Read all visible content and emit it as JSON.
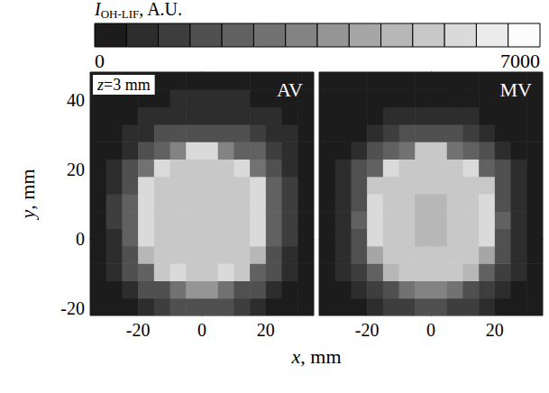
{
  "figure": {
    "xlabel": "x, mm",
    "ylabel": "y, mm",
    "colorbar": {
      "title": [
        "I",
        "OH-LIF",
        ", A.U."
      ],
      "range": [
        0,
        7000
      ],
      "ticks": [
        0,
        7000
      ],
      "levels": [
        0,
        500,
        1000,
        1500,
        2000,
        2500,
        3000,
        3500,
        4000,
        4500,
        5000,
        5500,
        6000,
        6500,
        7000
      ]
    }
  },
  "chart_data": [
    {
      "type": "heatmap",
      "title": "AV",
      "annotation": "z=3 mm",
      "xlim": [
        -35,
        35
      ],
      "ylim": [
        -22,
        48
      ],
      "xticks": [
        -20,
        0,
        20
      ],
      "yticks": [
        -20,
        0,
        20,
        40
      ],
      "tick_labels": true,
      "x_bins": [
        -35,
        -30,
        -25,
        -20,
        -15,
        -10,
        -5,
        0,
        5,
        10,
        15,
        20,
        25,
        30,
        35
      ],
      "y_bins": [
        -22,
        -17,
        -12,
        -7,
        -2,
        3,
        8,
        13,
        18,
        23,
        28,
        33,
        38,
        43,
        48
      ],
      "cells": [
        [
          300,
          350,
          450,
          800,
          1300,
          1600,
          1700,
          1700,
          1600,
          1300,
          800,
          450,
          350,
          300
        ],
        [
          300,
          400,
          800,
          1600,
          1900,
          2800,
          3500,
          3500,
          2800,
          1900,
          1600,
          800,
          400,
          300
        ],
        [
          350,
          700,
          1500,
          2200,
          5000,
          5600,
          5300,
          5300,
          5600,
          5000,
          2200,
          1600,
          700,
          350
        ],
        [
          380,
          850,
          1800,
          4500,
          5300,
          5200,
          5100,
          5100,
          5200,
          5300,
          4500,
          1900,
          900,
          380
        ],
        [
          400,
          950,
          2200,
          5700,
          5200,
          5100,
          5000,
          5000,
          5100,
          5200,
          5700,
          2300,
          1000,
          400
        ],
        [
          450,
          1000,
          2300,
          5800,
          5200,
          5100,
          5000,
          5000,
          5100,
          5200,
          5800,
          2400,
          1100,
          450
        ],
        [
          450,
          1000,
          2200,
          5700,
          5200,
          5100,
          5000,
          5000,
          5100,
          5200,
          5700,
          2300,
          1100,
          450
        ],
        [
          400,
          900,
          1800,
          5600,
          5300,
          5200,
          5100,
          5100,
          5200,
          5300,
          5600,
          2000,
          1000,
          400
        ],
        [
          350,
          800,
          1700,
          2500,
          5700,
          5200,
          5200,
          5200,
          5300,
          5700,
          2800,
          1900,
          900,
          350
        ],
        [
          300,
          450,
          900,
          1800,
          2200,
          3000,
          5600,
          5600,
          3200,
          2400,
          2000,
          1400,
          600,
          320
        ],
        [
          300,
          400,
          500,
          900,
          1600,
          1800,
          1800,
          1850,
          1900,
          1800,
          1400,
          900,
          500,
          320
        ],
        [
          300,
          350,
          400,
          500,
          750,
          850,
          900,
          950,
          900,
          850,
          800,
          600,
          400,
          320
        ],
        [
          320,
          350,
          380,
          420,
          470,
          520,
          560,
          560,
          540,
          500,
          450,
          400,
          350,
          320
        ],
        [
          300,
          300,
          320,
          350,
          380,
          400,
          420,
          420,
          400,
          380,
          350,
          330,
          300,
          300
        ]
      ]
    },
    {
      "type": "heatmap",
      "title": "MV",
      "xlim": [
        -35,
        35
      ],
      "ylim": [
        -22,
        48
      ],
      "xticks": [
        -20,
        0,
        20
      ],
      "yticks": [
        -20,
        0,
        20,
        40
      ],
      "tick_labels": "x",
      "x_bins": [
        -35,
        -30,
        -25,
        -20,
        -15,
        -10,
        -5,
        0,
        5,
        10,
        15,
        20,
        25,
        30,
        35
      ],
      "y_bins": [
        -22,
        -17,
        -12,
        -7,
        -2,
        3,
        8,
        13,
        18,
        23,
        28,
        33,
        38,
        43,
        48
      ],
      "cells": [
        [
          300,
          330,
          420,
          700,
          1100,
          1400,
          1500,
          1500,
          1400,
          1100,
          700,
          420,
          330,
          300
        ],
        [
          300,
          380,
          700,
          1400,
          1700,
          2500,
          3200,
          3200,
          2500,
          1700,
          1400,
          700,
          380,
          300
        ],
        [
          320,
          600,
          1300,
          2000,
          4800,
          5400,
          5200,
          5200,
          5400,
          4800,
          2000,
          1300,
          600,
          320
        ],
        [
          350,
          750,
          1600,
          4300,
          5200,
          5100,
          5000,
          5000,
          5100,
          5200,
          4300,
          1600,
          750,
          350
        ],
        [
          380,
          850,
          1900,
          5500,
          5100,
          5000,
          4900,
          4900,
          5000,
          5100,
          5500,
          1900,
          850,
          380
        ],
        [
          400,
          900,
          2000,
          5600,
          5100,
          5000,
          4900,
          4900,
          5000,
          5100,
          5600,
          2000,
          900,
          400
        ],
        [
          400,
          900,
          1900,
          5500,
          5100,
          5000,
          4900,
          4900,
          5000,
          5100,
          5500,
          1900,
          900,
          400
        ],
        [
          380,
          800,
          1600,
          5400,
          5200,
          5100,
          5000,
          5000,
          5100,
          5200,
          5400,
          1600,
          800,
          380
        ],
        [
          330,
          700,
          1500,
          2200,
          5500,
          5100,
          5100,
          5100,
          5100,
          5500,
          2200,
          1500,
          700,
          330
        ],
        [
          300,
          420,
          800,
          1500,
          2000,
          2700,
          5400,
          5400,
          2700,
          2000,
          1500,
          800,
          420,
          300
        ],
        [
          300,
          380,
          480,
          800,
          1400,
          1600,
          1600,
          1600,
          1600,
          1400,
          800,
          480,
          380,
          300
        ],
        [
          300,
          330,
          380,
          480,
          650,
          750,
          800,
          800,
          750,
          650,
          480,
          380,
          330,
          300
        ],
        [
          300,
          320,
          350,
          380,
          420,
          460,
          480,
          480,
          460,
          420,
          380,
          350,
          320,
          300
        ],
        [
          300,
          300,
          300,
          320,
          340,
          360,
          380,
          380,
          360,
          340,
          320,
          300,
          300,
          300
        ]
      ]
    }
  ]
}
